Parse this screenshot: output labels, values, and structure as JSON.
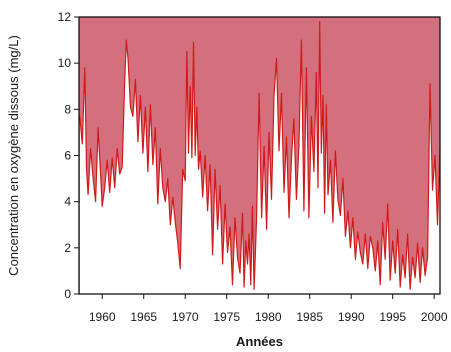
{
  "chart_data": {
    "type": "area",
    "title": "",
    "xlabel": "Années",
    "ylabel": "Concentration en oxygène dissous (mg/L)",
    "xlim": [
      1957.2,
      2000.7
    ],
    "ylim": [
      0,
      12
    ],
    "x_ticks": [
      1960,
      1965,
      1970,
      1975,
      1980,
      1985,
      1990,
      1995,
      2000
    ],
    "y_ticks": [
      0,
      2,
      4,
      6,
      8,
      10,
      12
    ],
    "grid": false,
    "legend": "none",
    "colors": {
      "fill_above_series": "#d4707e",
      "fill_below_series": "#ffffff",
      "series_line": "#d01a1a",
      "axis": "#111111"
    },
    "series": [
      {
        "x": [
          1957.3,
          1957.6,
          1957.9,
          1958.1,
          1958.3,
          1958.6,
          1958.9,
          1959.2,
          1959.5,
          1959.8,
          1960.0,
          1960.3,
          1960.6,
          1960.9,
          1961.2,
          1961.5,
          1961.8,
          1962.1,
          1962.4,
          1962.7,
          1962.9,
          1963.1,
          1963.4,
          1963.7,
          1964.0,
          1964.3,
          1964.6,
          1964.9,
          1965.2,
          1965.5,
          1965.8,
          1966.1,
          1966.4,
          1966.7,
          1967.0,
          1967.3,
          1967.6,
          1967.9,
          1968.2,
          1968.5,
          1968.8,
          1969.1,
          1969.4,
          1969.7,
          1970.0,
          1970.2,
          1970.4,
          1970.6,
          1970.8,
          1971.0,
          1971.2,
          1971.4,
          1971.6,
          1971.8,
          1972.1,
          1972.4,
          1972.7,
          1973.0,
          1973.3,
          1973.6,
          1973.9,
          1974.2,
          1974.5,
          1974.8,
          1975.1,
          1975.4,
          1975.7,
          1976.0,
          1976.3,
          1976.6,
          1976.9,
          1977.1,
          1977.3,
          1977.5,
          1977.7,
          1977.9,
          1978.1,
          1978.3,
          1978.6,
          1978.9,
          1979.2,
          1979.5,
          1979.8,
          1980.1,
          1980.4,
          1980.7,
          1981.0,
          1981.3,
          1981.6,
          1981.9,
          1982.2,
          1982.5,
          1982.8,
          1983.1,
          1983.4,
          1983.7,
          1984.0,
          1984.3,
          1984.6,
          1984.9,
          1985.2,
          1985.5,
          1985.8,
          1986.0,
          1986.2,
          1986.4,
          1986.6,
          1986.8,
          1987.0,
          1987.2,
          1987.5,
          1987.8,
          1988.1,
          1988.4,
          1988.7,
          1989.0,
          1989.3,
          1989.6,
          1989.9,
          1990.2,
          1990.5,
          1990.8,
          1991.1,
          1991.4,
          1991.7,
          1992.0,
          1992.3,
          1992.6,
          1992.9,
          1993.2,
          1993.5,
          1993.8,
          1994.1,
          1994.4,
          1994.7,
          1995.0,
          1995.3,
          1995.6,
          1995.9,
          1996.2,
          1996.5,
          1996.8,
          1997.1,
          1997.4,
          1997.7,
          1998.0,
          1998.3,
          1998.6,
          1998.9,
          1999.2,
          1999.5,
          1999.8,
          2000.1,
          2000.4,
          2000.7
        ],
        "values": [
          7.7,
          6.5,
          9.8,
          5.4,
          4.3,
          6.3,
          5.0,
          4.0,
          7.2,
          5.2,
          3.8,
          4.6,
          5.8,
          4.4,
          5.9,
          4.6,
          6.3,
          5.2,
          5.5,
          9.1,
          11.0,
          10.2,
          8.1,
          7.7,
          9.3,
          6.6,
          8.6,
          6.1,
          8.1,
          5.3,
          8.2,
          5.6,
          7.2,
          3.9,
          6.3,
          4.6,
          4.0,
          5.0,
          3.0,
          4.2,
          3.1,
          2.2,
          1.1,
          5.4,
          4.9,
          10.5,
          6.1,
          9.0,
          5.9,
          10.9,
          6.0,
          8.1,
          5.4,
          6.2,
          4.2,
          6.0,
          3.6,
          5.6,
          1.7,
          5.4,
          2.8,
          4.7,
          1.3,
          3.9,
          1.8,
          2.9,
          0.4,
          3.3,
          1.6,
          0.9,
          3.5,
          0.3,
          2.3,
          1.3,
          2.6,
          0.4,
          3.8,
          0.2,
          3.3,
          8.7,
          3.3,
          6.4,
          2.8,
          7.0,
          4.1,
          8.6,
          10.2,
          6.2,
          8.7,
          4.4,
          6.8,
          3.3,
          5.9,
          7.6,
          4.1,
          6.4,
          11.0,
          3.6,
          9.8,
          3.3,
          7.7,
          5.3,
          9.6,
          4.6,
          11.8,
          6.1,
          8.6,
          3.5,
          8.2,
          4.3,
          5.8,
          3.1,
          6.2,
          4.1,
          3.4,
          5.0,
          2.5,
          3.6,
          2.0,
          3.3,
          1.5,
          2.7,
          1.8,
          1.3,
          2.6,
          1.1,
          2.5,
          2.0,
          1.0,
          2.3,
          0.4,
          3.1,
          1.5,
          3.9,
          0.6,
          2.3,
          0.9,
          2.8,
          0.3,
          1.7,
          0.7,
          2.6,
          0.2,
          1.6,
          0.7,
          2.2,
          0.5,
          2.0,
          0.8,
          1.6,
          9.1,
          4.5,
          6.0,
          3.0,
          6.3
        ]
      }
    ]
  }
}
